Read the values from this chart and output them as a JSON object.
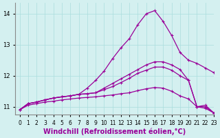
{
  "xlabel": "Windchill (Refroidissement éolien,°C)",
  "ylabel": "",
  "bg_color": "#d4f0f0",
  "line_color": "#990099",
  "grid_color": "#aadddd",
  "xlim": [
    -0.5,
    23
  ],
  "ylim": [
    10.75,
    14.35
  ],
  "xticks": [
    0,
    1,
    2,
    3,
    4,
    5,
    6,
    7,
    8,
    9,
    10,
    11,
    12,
    13,
    14,
    15,
    16,
    17,
    18,
    19,
    20,
    21,
    22,
    23
  ],
  "yticks": [
    11,
    12,
    13,
    14
  ],
  "series": [
    [
      10.9,
      11.1,
      11.15,
      11.22,
      11.28,
      11.32,
      11.35,
      11.4,
      11.6,
      11.85,
      12.15,
      12.55,
      12.9,
      13.2,
      13.65,
      14.0,
      14.1,
      13.75,
      13.3,
      12.75,
      12.5,
      12.4,
      12.25,
      12.1
    ],
    [
      10.9,
      11.1,
      11.15,
      11.22,
      11.28,
      11.32,
      11.35,
      11.4,
      11.42,
      11.45,
      11.6,
      11.75,
      11.9,
      12.05,
      12.2,
      12.35,
      12.45,
      12.45,
      12.35,
      12.2,
      11.85,
      11.0,
      11.05,
      10.8
    ],
    [
      10.9,
      11.1,
      11.15,
      11.22,
      11.28,
      11.32,
      11.35,
      11.4,
      11.42,
      11.45,
      11.55,
      11.65,
      11.78,
      11.92,
      12.08,
      12.18,
      12.28,
      12.28,
      12.18,
      12.0,
      11.85,
      11.0,
      11.0,
      10.8
    ],
    [
      10.9,
      11.05,
      11.1,
      11.15,
      11.18,
      11.22,
      11.25,
      11.28,
      11.3,
      11.32,
      11.35,
      11.38,
      11.42,
      11.45,
      11.52,
      11.58,
      11.62,
      11.6,
      11.5,
      11.35,
      11.25,
      11.0,
      10.95,
      10.8
    ]
  ],
  "marker": "+",
  "markersize": 3,
  "linewidth": 0.9,
  "tick_fontsize": 6,
  "xlabel_fontsize": 7
}
